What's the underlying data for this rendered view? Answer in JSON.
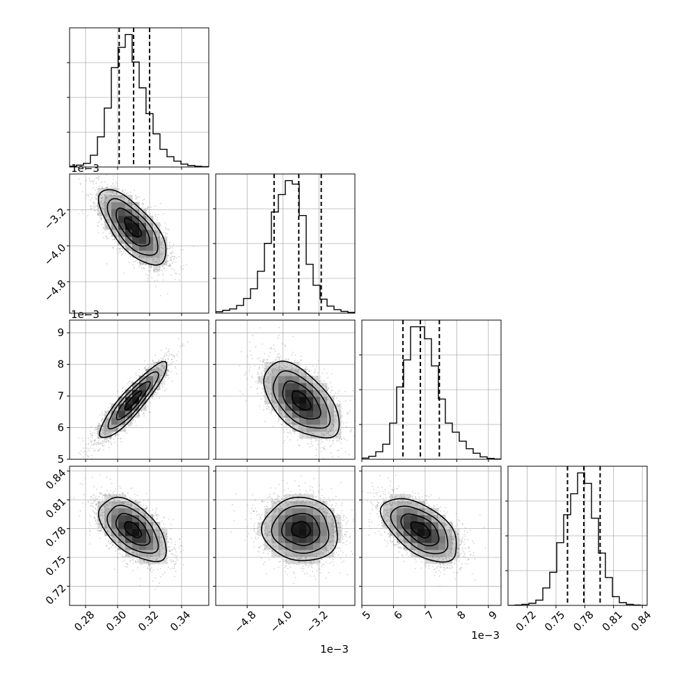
{
  "figure": {
    "shared_offset_label": "1e−3"
  },
  "chart_data": {
    "type": "corner",
    "title": "",
    "parameters": [
      {
        "index": 0,
        "range": [
          0.27,
          0.357
        ],
        "ticks": [
          0.28,
          0.3,
          0.32,
          0.34
        ],
        "tick_labels": [
          "0.28",
          "0.30",
          "0.32",
          "0.34"
        ],
        "scale_factor": 1,
        "offset_text": ""
      },
      {
        "index": 1,
        "range": [
          -5.5,
          -2.4
        ],
        "ticks": [
          -4.8,
          -4.0,
          -3.2
        ],
        "tick_labels": [
          "−4.8",
          "−4.0",
          "−3.2"
        ],
        "scale_factor": 0.001,
        "offset_text": "1e−3"
      },
      {
        "index": 2,
        "range": [
          5.0,
          9.4
        ],
        "ticks": [
          5,
          6,
          7,
          8,
          9
        ],
        "tick_labels": [
          "5",
          "6",
          "7",
          "8",
          "9"
        ],
        "scale_factor": 0.001,
        "offset_text": "1e−3"
      },
      {
        "index": 3,
        "range": [
          0.7,
          0.845
        ],
        "ticks": [
          0.72,
          0.75,
          0.78,
          0.81,
          0.84
        ],
        "tick_labels": [
          "0.72",
          "0.75",
          "0.78",
          "0.81",
          "0.84"
        ],
        "scale_factor": 1,
        "offset_text": ""
      }
    ],
    "marginals": [
      {
        "param": 0,
        "bin_edges": [
          0.27,
          0.2743,
          0.2787,
          0.283,
          0.2874,
          0.2917,
          0.2961,
          0.3004,
          0.3048,
          0.3091,
          0.3135,
          0.3178,
          0.3222,
          0.3265,
          0.3309,
          0.3352,
          0.3396,
          0.3439,
          0.3483,
          0.3526,
          0.357
        ],
        "counts": [
          2,
          5,
          10,
          32,
          82,
          160,
          270,
          325,
          360,
          285,
          215,
          145,
          90,
          48,
          28,
          16,
          8,
          4,
          2,
          1
        ],
        "quantiles": [
          0.301,
          0.31,
          0.32
        ]
      },
      {
        "param": 1,
        "bin_edges": [
          -5.5,
          -5.345,
          -5.19,
          -5.035,
          -4.88,
          -4.725,
          -4.57,
          -4.415,
          -4.26,
          -4.105,
          -3.95,
          -3.795,
          -3.64,
          -3.485,
          -3.33,
          -3.175,
          -3.02,
          -2.865,
          -2.71,
          -2.555,
          -2.4
        ],
        "counts": [
          4,
          8,
          12,
          22,
          42,
          70,
          120,
          200,
          290,
          340,
          380,
          370,
          280,
          140,
          80,
          40,
          20,
          10,
          5,
          2
        ],
        "quantiles": [
          -4.2,
          -3.65,
          -3.15
        ]
      },
      {
        "param": 2,
        "bin_edges": [
          5.0,
          5.22,
          5.44,
          5.66,
          5.88,
          6.1,
          6.32,
          6.54,
          6.76,
          6.98,
          7.2,
          7.42,
          7.64,
          7.86,
          8.08,
          8.3,
          8.52,
          8.74,
          8.96,
          9.18,
          9.4
        ],
        "counts": [
          4,
          10,
          25,
          50,
          120,
          240,
          330,
          440,
          440,
          400,
          310,
          200,
          120,
          90,
          60,
          35,
          20,
          8,
          3,
          1
        ],
        "quantiles": [
          6.3,
          6.85,
          7.45
        ]
      },
      {
        "param": 3,
        "bin_edges": [
          0.7,
          0.7073,
          0.7145,
          0.7218,
          0.729,
          0.7363,
          0.7435,
          0.7508,
          0.758,
          0.7653,
          0.7725,
          0.7798,
          0.787,
          0.7943,
          0.8015,
          0.8088,
          0.816,
          0.8233,
          0.8305,
          0.8378,
          0.845
        ],
        "counts": [
          0,
          1,
          3,
          6,
          15,
          50,
          95,
          180,
          260,
          320,
          380,
          350,
          250,
          150,
          80,
          25,
          8,
          3,
          1,
          0
        ],
        "quantiles": [
          0.762,
          0.779,
          0.796
        ]
      }
    ],
    "pairs": [
      {
        "x_param": 0,
        "y_param": 1,
        "mean": [
          0.3095,
          -3.6
        ],
        "sd": [
          0.0105,
          0.42
        ],
        "rho": -0.7
      },
      {
        "x_param": 0,
        "y_param": 2,
        "mean": [
          0.3095,
          6.85
        ],
        "sd": [
          0.0105,
          0.6
        ],
        "rho": 0.9
      },
      {
        "x_param": 1,
        "y_param": 2,
        "mean": [
          -3.6,
          6.85
        ],
        "sd": [
          0.42,
          0.6
        ],
        "rho": -0.55
      },
      {
        "x_param": 0,
        "y_param": 3,
        "mean": [
          0.3095,
          0.779
        ],
        "sd": [
          0.0105,
          0.0165
        ],
        "rho": -0.55
      },
      {
        "x_param": 1,
        "y_param": 3,
        "mean": [
          -3.6,
          0.779
        ],
        "sd": [
          0.42,
          0.0165
        ],
        "rho": -0.05
      },
      {
        "x_param": 2,
        "y_param": 3,
        "mean": [
          6.85,
          0.779
        ],
        "sd": [
          0.6,
          0.0165
        ],
        "rho": -0.55
      }
    ],
    "contour_levels_sigma": [
      0.5,
      1.0,
      1.5,
      2.0
    ],
    "grid": true,
    "legend": "none"
  }
}
